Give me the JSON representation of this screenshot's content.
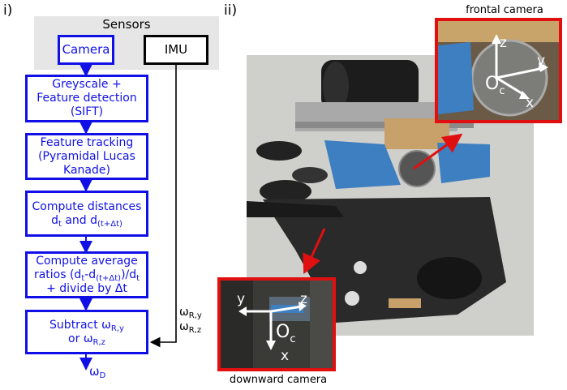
{
  "panel_i_label": "i)",
  "panel_ii_label": "ii)",
  "sensors": {
    "title": "Sensors",
    "camera": "Camera",
    "imu": "IMU"
  },
  "steps": {
    "greyscale": {
      "line1": "Greyscale +",
      "line2": "Feature detection",
      "line3": "(SIFT)"
    },
    "tracking": {
      "line1": "Feature tracking",
      "line2": "(Pyramidal Lucas",
      "line3": "Kanade)"
    },
    "distances": {
      "line1": "Compute distances",
      "d1": "d",
      "d1_sub": "t",
      "and": " and ",
      "d2": "d",
      "d2_sub": "(t+Δt)"
    },
    "ratios": {
      "line1": "Compute average",
      "line2a": "ratios (d",
      "line2a_sub": "t",
      "line2b": "-d",
      "line2b_sub": "(t+Δt)",
      "line2c": ")/d",
      "line2c_sub": "t",
      "line3": "+ divide by Δt"
    },
    "subtract": {
      "line1": "Subtract ω",
      "line1_sub": "R,y",
      "line2": "or ω",
      "line2_sub": "R,z"
    }
  },
  "imu_outputs": {
    "a": "ω",
    "a_sub": "R,y",
    "b": "ω",
    "b_sub": "R,z"
  },
  "output": {
    "symbol": "ω",
    "sub": "D"
  },
  "frontal_camera": {
    "caption": "frontal camera",
    "z": "z",
    "y": "y",
    "x": "x",
    "origin": "O",
    "origin_sub": "c"
  },
  "downward_camera": {
    "caption": "downward camera",
    "y": "y",
    "z": "z",
    "x": "x",
    "origin": "O",
    "origin_sub": "c"
  },
  "colors": {
    "flow_blue": "#1010e6",
    "inset_red": "#e01010"
  }
}
